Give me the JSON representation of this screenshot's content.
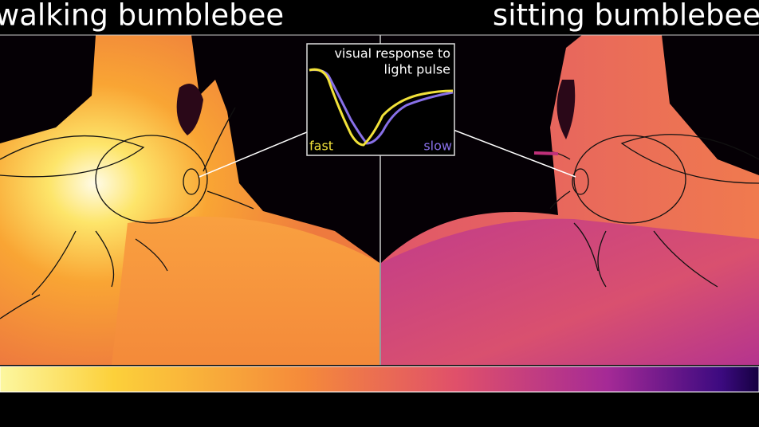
{
  "panels": {
    "left": {
      "title": "walking bumblebee"
    },
    "right": {
      "title": "sitting bumblebee"
    }
  },
  "inset": {
    "title_lines": [
      "visual response to",
      "light pulse"
    ],
    "fast_label": "fast",
    "slow_label": "slow"
  }
}
